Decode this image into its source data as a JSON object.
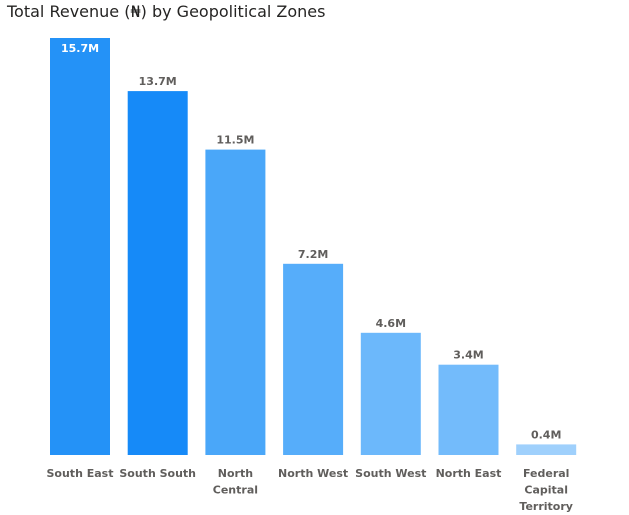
{
  "title": "Total Revenue (₦) by Geopolitical Zones",
  "chart_data": {
    "type": "bar",
    "title": "Total Revenue (₦) by Geopolitical Zones",
    "categories": [
      [
        "South East"
      ],
      [
        "South South"
      ],
      [
        "North",
        "Central"
      ],
      [
        "North West"
      ],
      [
        "South West"
      ],
      [
        "North East"
      ],
      [
        "Federal",
        "Capital",
        "Territory"
      ]
    ],
    "values": [
      15.7,
      13.7,
      11.5,
      7.2,
      4.6,
      3.4,
      0.4
    ],
    "data_labels": [
      "15.7M",
      "13.7M",
      "11.5M",
      "7.2M",
      "4.6M",
      "3.4M",
      "0.4M"
    ],
    "colors": [
      "#2492f7",
      "#168af8",
      "#4aa7f9",
      "#56adfa",
      "#6cb8fb",
      "#73bbfb",
      "#9fd0fc"
    ],
    "label_colors": [
      "#ffffff",
      "#605e5c",
      "#605e5c",
      "#605e5c",
      "#605e5c",
      "#605e5c",
      "#605e5c"
    ],
    "ylim": [
      0,
      15.7
    ],
    "grid": false,
    "legend": "none",
    "xlabel": "",
    "ylabel": ""
  }
}
